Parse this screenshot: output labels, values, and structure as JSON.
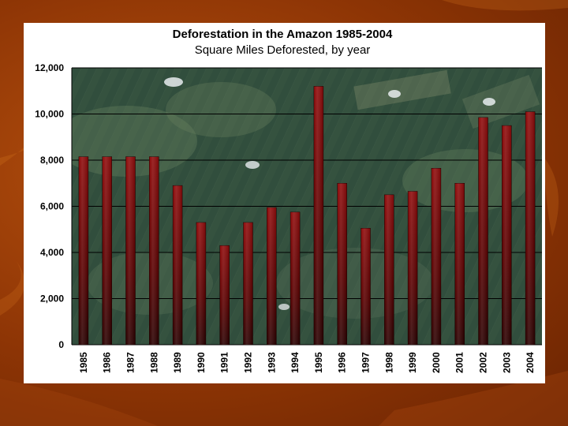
{
  "colors": {
    "slide_background": "#8e3505",
    "panel": "#ffffff",
    "bar_top": "#8a0000",
    "bar_bottom": "#2a0000",
    "gridline": "#000000",
    "plot_background": "#2f4a3a"
  },
  "chart_data": {
    "type": "bar",
    "title": "Deforestation in the Amazon 1985-2004",
    "subtitle": "Square Miles Deforested, by year",
    "xlabel": "",
    "ylabel": "",
    "categories": [
      "1985",
      "1986",
      "1987",
      "1988",
      "1989",
      "1990",
      "1991",
      "1992",
      "1993",
      "1994",
      "1995",
      "1996",
      "1997",
      "1998",
      "1999",
      "2000",
      "2001",
      "2002",
      "2003",
      "2004"
    ],
    "values": [
      8150,
      8150,
      8150,
      8150,
      6900,
      5300,
      4300,
      5300,
      5950,
      5750,
      11200,
      7000,
      5050,
      6500,
      6650,
      7650,
      7000,
      9850,
      9500,
      10100
    ],
    "ylim": [
      0,
      12000
    ],
    "yticks": [
      0,
      2000,
      4000,
      6000,
      8000,
      10000,
      12000
    ],
    "ytick_labels": [
      "0",
      "2,000",
      "4,000",
      "6,000",
      "8,000",
      "10,000",
      "12,000"
    ],
    "grid": true,
    "legend": "none",
    "plot_background": "satellite image of Amazon forest clearing"
  }
}
